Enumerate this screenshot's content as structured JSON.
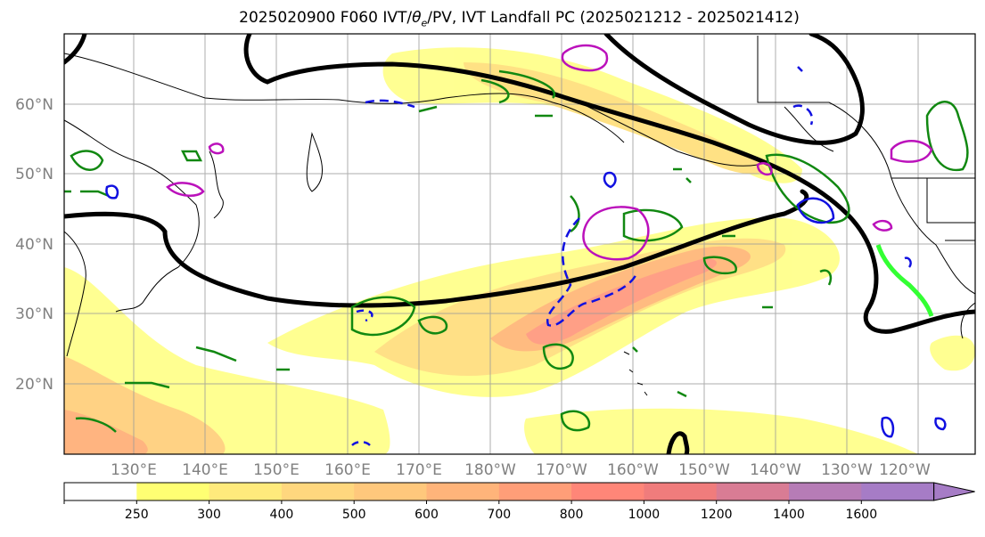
{
  "title_pre": "2025020900 F060 IVT/",
  "title_theta": "θ",
  "title_sub": "e",
  "title_post": "/PV, IVT Landfall PC (2025021212 - 2025021412)",
  "lat_labels": [
    "60°N",
    "50°N",
    "40°N",
    "30°N",
    "20°N"
  ],
  "lon_labels": [
    "130°E",
    "140°E",
    "150°E",
    "160°E",
    "170°E",
    "180°W",
    "170°W",
    "160°W",
    "150°W",
    "140°W",
    "130°W",
    "120°W"
  ],
  "colorbar": {
    "ticks": [
      "250",
      "300",
      "400",
      "500",
      "600",
      "700",
      "800",
      "1000",
      "1200",
      "1400",
      "1600"
    ],
    "colors": [
      "#ffffff",
      "#ffff73",
      "#ffea7c",
      "#ffd77e",
      "#ffc87c",
      "#ffb47a",
      "#ff9e78",
      "#ff8678",
      "#f07c7c",
      "#d97c94",
      "#b67cb6",
      "#a67cc6"
    ]
  }
}
